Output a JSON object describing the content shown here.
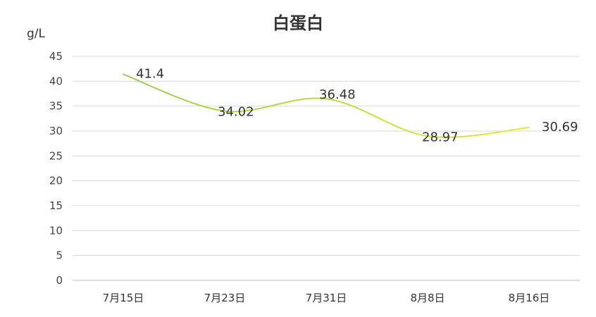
{
  "chart_data": {
    "type": "line",
    "title": "白蛋白",
    "ylabel": "g/L",
    "xlabel": "",
    "categories": [
      "7月15日",
      "7月23日",
      "7月31日",
      "8月8日",
      "8月16日"
    ],
    "series": [
      {
        "values": [
          41.4,
          34.02,
          36.48,
          28.97,
          30.69
        ],
        "color_start": "#92d050",
        "color_end": "#e8e832"
      }
    ],
    "data_labels": [
      "41.4",
      "34.02",
      "36.48",
      "28.97",
      "30.69"
    ],
    "yticks": [
      "0",
      "5",
      "10",
      "15",
      "20",
      "25",
      "30",
      "35",
      "40",
      "45"
    ],
    "ylim": [
      0,
      45
    ],
    "grid": true,
    "legend": "none",
    "smooth": true
  }
}
